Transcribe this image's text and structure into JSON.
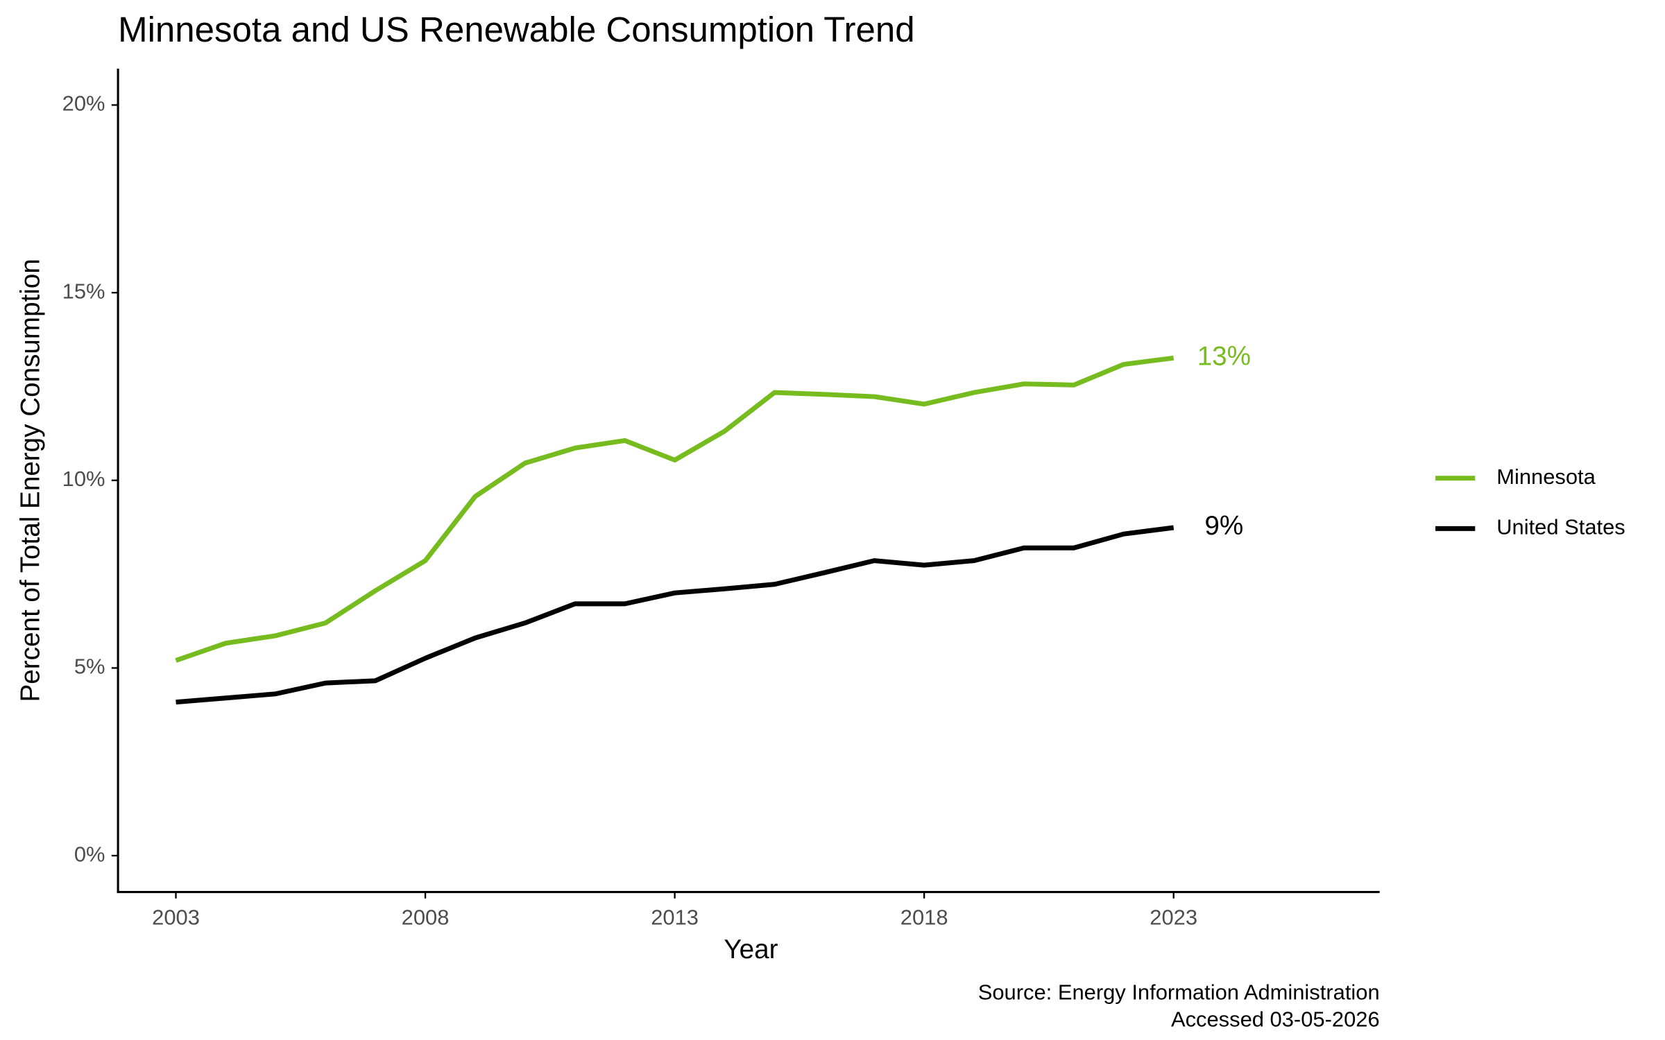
{
  "chart_data": {
    "type": "line",
    "title": "Minnesota and US Renewable Consumption Trend",
    "x_label": "Year",
    "y_label": "Percent of Total Energy Consumption",
    "caption": [
      "Source: Energy Information Administration",
      "Accessed 03-05-2026"
    ],
    "x": [
      2003,
      2004,
      2005,
      2006,
      2007,
      2008,
      2009,
      2010,
      2011,
      2012,
      2013,
      2014,
      2015,
      2016,
      2017,
      2018,
      2019,
      2020,
      2021,
      2022,
      2023
    ],
    "series": [
      {
        "name": "Minnesota",
        "color": "#77bc1f",
        "values": [
          5.2,
          5.66,
          5.86,
          6.2,
          7.06,
          7.86,
          9.57,
          10.46,
          10.86,
          11.06,
          10.54,
          11.31,
          12.34,
          12.29,
          12.23,
          12.03,
          12.34,
          12.57,
          12.54,
          13.09,
          13.26
        ],
        "value_labels": [
          null,
          null,
          null,
          null,
          null,
          null,
          null,
          null,
          null,
          null,
          null,
          null,
          null,
          null,
          null,
          null,
          null,
          null,
          null,
          null,
          "13%"
        ]
      },
      {
        "name": "United States",
        "color": "#000000",
        "values": [
          4.09,
          4.2,
          4.31,
          4.6,
          4.66,
          5.26,
          5.8,
          6.2,
          6.71,
          6.71,
          7.0,
          7.11,
          7.23,
          7.54,
          7.86,
          7.74,
          7.86,
          8.2,
          8.2,
          8.57,
          8.74
        ],
        "value_labels": [
          null,
          null,
          null,
          null,
          null,
          null,
          null,
          null,
          null,
          null,
          null,
          null,
          null,
          null,
          null,
          null,
          null,
          null,
          null,
          null,
          "9%"
        ]
      }
    ],
    "xlim": [
      2001.84,
      2027.13
    ],
    "xticks": [
      2003,
      2008,
      2013,
      2018,
      2023
    ],
    "ylim": [
      -0.97,
      20.97
    ],
    "yticks": [
      {
        "value": 0,
        "label": "0%"
      },
      {
        "value": 5,
        "label": "5%"
      },
      {
        "value": 10,
        "label": "10%"
      },
      {
        "value": 15,
        "label": "15%"
      },
      {
        "value": 20,
        "label": "20%"
      }
    ],
    "grid": false,
    "legend": "right"
  }
}
